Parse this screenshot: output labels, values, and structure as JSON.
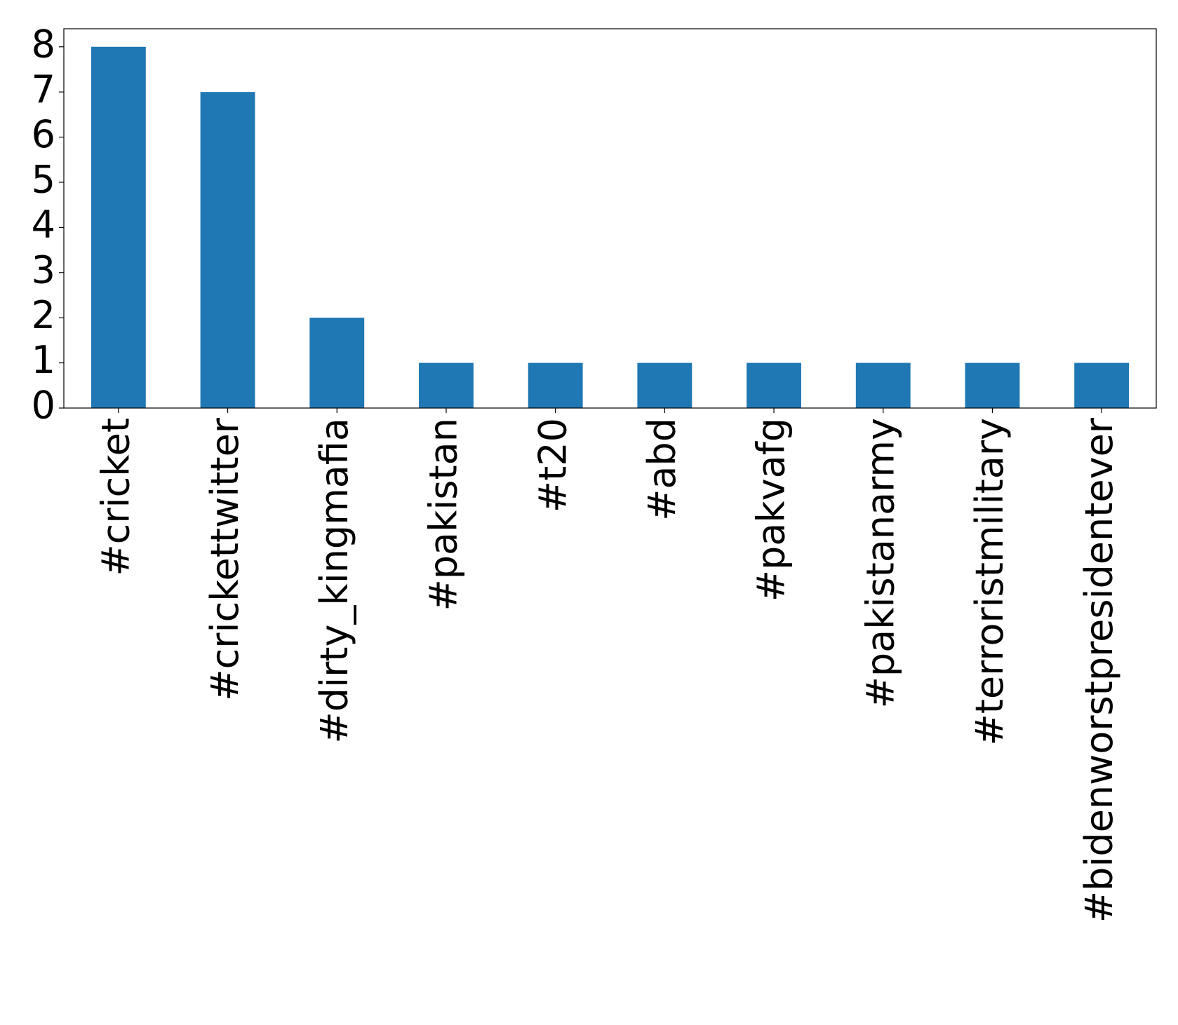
{
  "chart_data": {
    "type": "bar",
    "categories": [
      "#cricket",
      "#crickettwitter",
      "#dirty_kingmafia",
      "#pakistan",
      "#t20",
      "#abd",
      "#pakvafg",
      "#pakistanarmy",
      "#terroristmilitary",
      "#bidenworstpresidentever"
    ],
    "values": [
      8,
      7,
      2,
      1,
      1,
      1,
      1,
      1,
      1,
      1
    ],
    "color": "#1f77b4",
    "ylim": [
      0,
      8.4
    ],
    "yticks": [
      0,
      1,
      2,
      3,
      4,
      5,
      6,
      7,
      8
    ],
    "grid": false
  }
}
